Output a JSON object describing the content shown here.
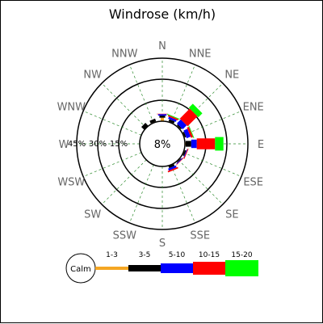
{
  "chart_data": {
    "type": "windrose",
    "title": "Windrose (km/h)",
    "directions": [
      "N",
      "NNE",
      "NE",
      "ENE",
      "E",
      "ESE",
      "SE",
      "SSE",
      "S",
      "SSW",
      "SW",
      "WSW",
      "W",
      "WNW",
      "NW",
      "NNW"
    ],
    "ring_labels": [
      "15%",
      "30%",
      "45%"
    ],
    "ring_values": [
      15,
      30,
      45
    ],
    "calm": {
      "label": "Calm",
      "value": "8%"
    },
    "bins": [
      {
        "name": "1-3",
        "color": "#f5a623"
      },
      {
        "name": "3-5",
        "color": "#000000"
      },
      {
        "name": "5-10",
        "color": "#0000ff"
      },
      {
        "name": "10-15",
        "color": "#ff0000"
      },
      {
        "name": "15-20",
        "color": "#00ff00"
      }
    ],
    "frequencies": [
      {
        "direction": "N",
        "values": [
          2.5,
          1.5,
          1.0,
          0.3,
          0.0
        ]
      },
      {
        "direction": "NNE",
        "values": [
          0.5,
          1.5,
          1.5,
          1.0,
          0.5
        ]
      },
      {
        "direction": "NE",
        "values": [
          0.5,
          1.0,
          4.0,
          10.0,
          4.0
        ]
      },
      {
        "direction": "ENE",
        "values": [
          0.5,
          1.0,
          3.0,
          1.5,
          0.5
        ]
      },
      {
        "direction": "E",
        "values": [
          0.5,
          4.0,
          4.0,
          13.0,
          6.0
        ]
      },
      {
        "direction": "ESE",
        "values": [
          0.5,
          1.0,
          0.5,
          0.5,
          0.0
        ]
      },
      {
        "direction": "SE",
        "values": [
          0.5,
          0.5,
          0.5,
          0.3,
          0.0
        ]
      },
      {
        "direction": "SSE",
        "values": [
          0.3,
          1.5,
          1.5,
          1.0,
          0.0
        ]
      },
      {
        "direction": "S",
        "values": [
          0.0,
          0.0,
          0.0,
          0.0,
          0.0
        ]
      },
      {
        "direction": "SSW",
        "values": [
          0.0,
          0.0,
          0.0,
          0.0,
          0.0
        ]
      },
      {
        "direction": "SW",
        "values": [
          0.0,
          0.0,
          0.0,
          0.0,
          0.0
        ]
      },
      {
        "direction": "WSW",
        "values": [
          0.0,
          0.0,
          0.0,
          0.0,
          0.0
        ]
      },
      {
        "direction": "W",
        "values": [
          0.0,
          0.0,
          0.0,
          0.0,
          0.0
        ]
      },
      {
        "direction": "WNW",
        "values": [
          0.0,
          0.0,
          0.0,
          0.0,
          0.0
        ]
      },
      {
        "direction": "NW",
        "values": [
          0.0,
          3.0,
          0.0,
          0.0,
          0.0
        ]
      },
      {
        "direction": "NNW",
        "values": [
          0.5,
          2.0,
          0.0,
          0.0,
          0.0
        ]
      }
    ],
    "grid": true
  }
}
